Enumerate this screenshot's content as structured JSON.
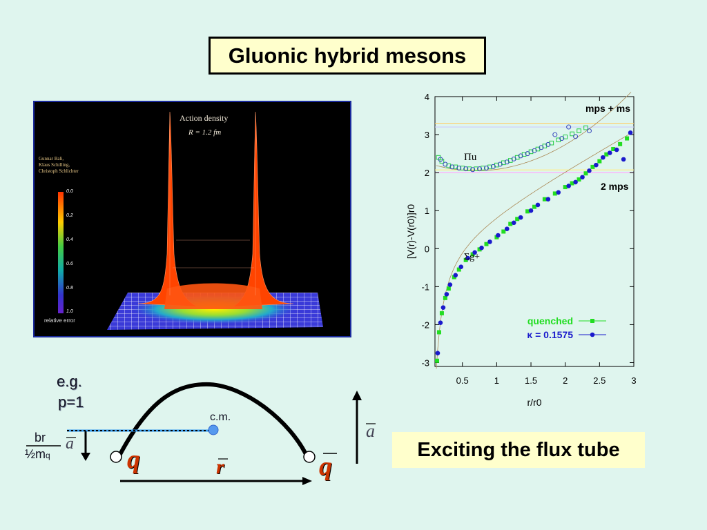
{
  "slide": {
    "title": "Gluonic hybrid mesons",
    "flux_tube_label": "Exciting the flux tube"
  },
  "action_plot": {
    "title": "Action density",
    "subtitle": "R = 1.2 fm",
    "authors": [
      "Gunnar Bali,",
      "Klaus Schilling,",
      "Christoph Schlichter"
    ],
    "colorbar_ticks": [
      "0.0",
      "0.2",
      "0.4",
      "0.6",
      "0.8",
      "1.0"
    ],
    "colorbar_label": "relative error"
  },
  "chart_data": {
    "type": "scatter",
    "xlabel": "r/r0",
    "ylabel": "[V(r)-V(r0)]r0",
    "xlim": [
      0.1,
      3.0
    ],
    "ylim": [
      -3.1,
      4.0
    ],
    "x_ticks": [
      "0.5",
      "1",
      "1.5",
      "2",
      "2.5",
      "3"
    ],
    "y_ticks": [
      "-3",
      "-2",
      "-1",
      "0",
      "1",
      "2",
      "3",
      "4"
    ],
    "annotations": {
      "pi_u": "Πu",
      "sigma_g": "Σg+",
      "mps_ms": "mps + ms",
      "two_mps": "2 mps"
    },
    "hlines": [
      2.0,
      2.07,
      3.2,
      3.3
    ],
    "legend": [
      {
        "name": "quenched",
        "color": "#22dd22"
      },
      {
        "name": "κ = 0.1575",
        "color": "#1a1acc"
      }
    ],
    "series": [
      {
        "name": "quenched",
        "marker": "square",
        "curve": "sigma",
        "x": [
          0.13,
          0.16,
          0.2,
          0.25,
          0.3,
          0.38,
          0.45,
          0.55,
          0.65,
          0.75,
          0.85,
          1.0,
          1.1,
          1.2,
          1.3,
          1.45,
          1.55,
          1.7,
          1.85,
          2.0,
          2.1,
          2.2,
          2.3,
          2.4,
          2.5,
          2.6,
          2.7,
          2.8,
          2.9
        ],
        "y": [
          -2.95,
          -2.2,
          -1.7,
          -1.3,
          -1.05,
          -0.75,
          -0.55,
          -0.3,
          -0.15,
          -0.02,
          0.12,
          0.3,
          0.45,
          0.65,
          0.78,
          0.98,
          1.1,
          1.3,
          1.45,
          1.62,
          1.72,
          1.82,
          1.98,
          2.15,
          2.3,
          2.48,
          2.62,
          2.75,
          2.9
        ]
      },
      {
        "name": "κ = 0.1575",
        "marker": "circle",
        "curve": "sigma",
        "x": [
          0.14,
          0.18,
          0.22,
          0.27,
          0.32,
          0.4,
          0.48,
          0.58,
          0.68,
          0.78,
          0.9,
          1.02,
          1.15,
          1.25,
          1.35,
          1.5,
          1.6,
          1.75,
          1.9,
          2.05,
          2.15,
          2.25,
          2.35,
          2.45,
          2.55,
          2.65,
          2.75,
          2.85,
          2.95
        ],
        "y": [
          -2.75,
          -1.95,
          -1.55,
          -1.2,
          -0.95,
          -0.7,
          -0.48,
          -0.25,
          -0.1,
          0.02,
          0.18,
          0.35,
          0.52,
          0.68,
          0.82,
          1.0,
          1.15,
          1.3,
          1.48,
          1.65,
          1.75,
          1.88,
          2.05,
          2.2,
          2.4,
          2.52,
          2.6,
          2.35,
          3.05
        ]
      },
      {
        "name": "Πu quenched",
        "marker": "open-square",
        "curve": "pi",
        "x": [
          0.15,
          0.2,
          0.3,
          0.4,
          0.5,
          0.6,
          0.7,
          0.8,
          0.9,
          1.0,
          1.1,
          1.2,
          1.3,
          1.4,
          1.5,
          1.6,
          1.7,
          1.8,
          1.9,
          2.0,
          2.1,
          2.2,
          2.3
        ],
        "y": [
          2.4,
          2.3,
          2.18,
          2.15,
          2.12,
          2.1,
          2.1,
          2.12,
          2.15,
          2.2,
          2.26,
          2.32,
          2.4,
          2.48,
          2.55,
          2.62,
          2.7,
          2.78,
          2.86,
          2.94,
          3.02,
          3.1,
          3.18
        ]
      },
      {
        "name": "Πu κ",
        "marker": "open-circle",
        "curve": "pi",
        "x": [
          0.18,
          0.25,
          0.35,
          0.45,
          0.55,
          0.65,
          0.75,
          0.85,
          0.95,
          1.05,
          1.15,
          1.25,
          1.35,
          1.45,
          1.55,
          1.65,
          1.75,
          1.85,
          1.95,
          2.05,
          2.15,
          2.35
        ],
        "y": [
          2.35,
          2.22,
          2.15,
          2.12,
          2.1,
          2.08,
          2.1,
          2.12,
          2.16,
          2.22,
          2.28,
          2.36,
          2.44,
          2.5,
          2.58,
          2.66,
          2.74,
          3.0,
          2.9,
          3.2,
          2.95,
          3.1
        ]
      }
    ]
  },
  "diagram": {
    "eg": "e.g.",
    "p_eq": "p=1",
    "cm": "c.m.",
    "fraction_num": "br",
    "fraction_den": "½m",
    "fraction_den_sub": "q",
    "a_vec": "a",
    "q": "q",
    "qbar": "q",
    "r_vec": "r"
  }
}
